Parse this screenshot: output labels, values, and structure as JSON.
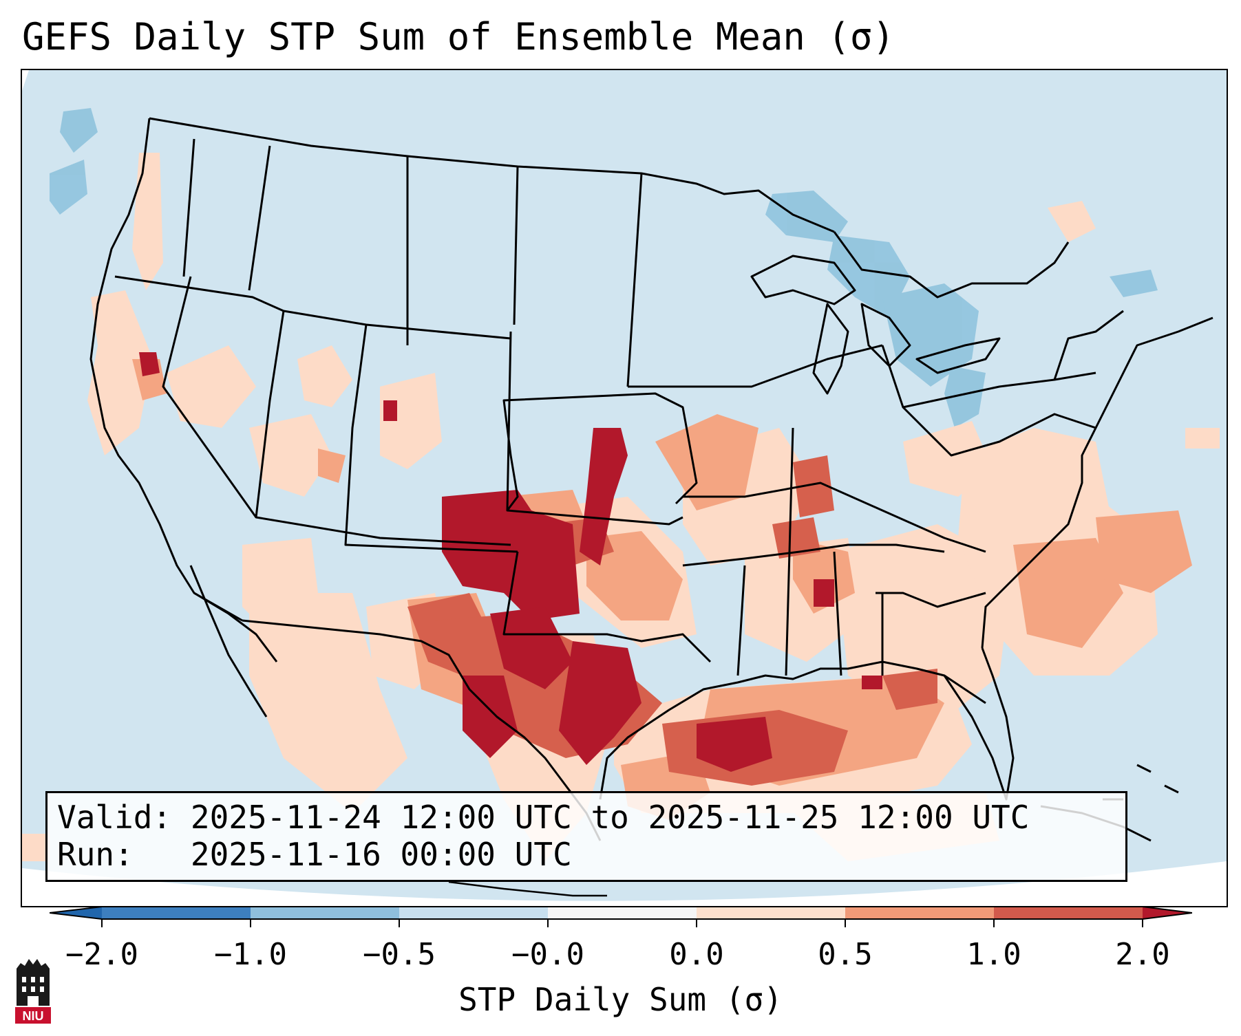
{
  "title": "GEFS Daily STP Sum of Ensemble Mean (σ)",
  "info": {
    "valid_label": "Valid:",
    "valid_value": "2025-11-24 12:00 UTC to 2025-11-25 12:00 UTC",
    "run_label": "Run:",
    "run_value": "2025-11-16 00:00 UTC"
  },
  "colorbar": {
    "label": "STP Daily Sum (σ)",
    "ticks": [
      "−2.0",
      "−1.0",
      "−0.5",
      "−0.0",
      "0.0",
      "0.5",
      "1.0",
      "2.0"
    ],
    "bins": [
      "#3d7fbf",
      "#8fbfdc",
      "#c8dfee",
      "#f5f5f5",
      "#fde0cd",
      "#f09a78",
      "#d25a4c"
    ],
    "under_color": "#2166ac",
    "over_color": "#b2182b"
  },
  "map": {
    "background": "#d1e5f0",
    "anomaly_colors": {
      "neg_medium": "#92c5de",
      "pos_light": "#fddbc7",
      "pos_medium": "#f4a582",
      "pos_strong": "#d6604d",
      "pos_max": "#b2182b"
    }
  },
  "logo_text": "NIU"
}
